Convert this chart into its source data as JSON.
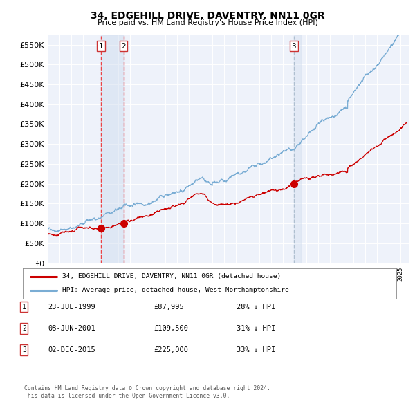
{
  "title": "34, EDGEHILL DRIVE, DAVENTRY, NN11 0GR",
  "subtitle": "Price paid vs. HM Land Registry's House Price Index (HPI)",
  "legend_label_red": "34, EDGEHILL DRIVE, DAVENTRY, NN11 0GR (detached house)",
  "legend_label_blue": "HPI: Average price, detached house, West Northamptonshire",
  "footer1": "Contains HM Land Registry data © Crown copyright and database right 2024.",
  "footer2": "This data is licensed under the Open Government Licence v3.0.",
  "transactions": [
    {
      "label": "1",
      "date": "23-JUL-1999",
      "date_num": 1999.55,
      "price": 87995,
      "note": "28% ↓ HPI"
    },
    {
      "label": "2",
      "date": "08-JUN-2001",
      "date_num": 2001.44,
      "price": 109500,
      "note": "31% ↓ HPI"
    },
    {
      "label": "3",
      "date": "02-DEC-2015",
      "date_num": 2015.92,
      "price": 225000,
      "note": "33% ↓ HPI"
    }
  ],
  "ylim": [
    0,
    575000
  ],
  "xlim_start": 1995.0,
  "xlim_end": 2025.7,
  "background_color": "#ffffff",
  "plot_bg_color": "#eef2fa",
  "grid_color": "#ffffff",
  "red_color": "#cc0000",
  "blue_color": "#7aadd4",
  "vspan_color": "#ccdaee",
  "dashed_color": "#ee3333",
  "vline3_color": "#aabbcc"
}
